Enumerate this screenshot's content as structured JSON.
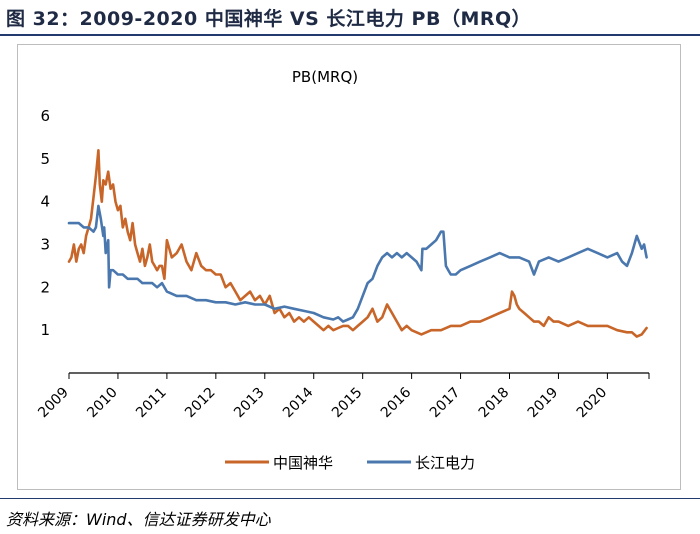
{
  "figure": {
    "title": "图 32：2009-2020 中国神华 VS 长江电力 PB（MRQ）",
    "source": "资料来源：Wind、信达证券研发中心"
  },
  "colors": {
    "title_rule": "#233a6e",
    "series_shenhua": "#c8662a",
    "series_changjiang": "#4a78ae",
    "axis": "#000000"
  },
  "chart_data": {
    "type": "line",
    "title": "PB(MRQ)",
    "xlabel": "",
    "ylabel": "",
    "xlim": [
      2009.0,
      2020.85
    ],
    "ylim": [
      0,
      6
    ],
    "yticks": [
      1,
      2,
      3,
      4,
      5,
      6
    ],
    "xticks": [
      "2009",
      "2010",
      "2011",
      "2012",
      "2013",
      "2014",
      "2015",
      "2016",
      "2017",
      "2018",
      "2019",
      "2020"
    ],
    "grid": false,
    "legend_position": "bottom",
    "series": [
      {
        "name": "中国神华",
        "color": "#c8662a",
        "x": [
          2009.0,
          2009.05,
          2009.1,
          2009.15,
          2009.2,
          2009.25,
          2009.3,
          2009.35,
          2009.4,
          2009.45,
          2009.5,
          2009.55,
          2009.6,
          2009.63,
          2009.67,
          2009.7,
          2009.75,
          2009.8,
          2009.85,
          2009.9,
          2009.95,
          2010.0,
          2010.05,
          2010.1,
          2010.15,
          2010.2,
          2010.25,
          2010.3,
          2010.35,
          2010.4,
          2010.45,
          2010.5,
          2010.55,
          2010.6,
          2010.65,
          2010.7,
          2010.75,
          2010.8,
          2010.85,
          2010.9,
          2010.95,
          2011.0,
          2011.1,
          2011.2,
          2011.3,
          2011.4,
          2011.5,
          2011.6,
          2011.7,
          2011.8,
          2011.9,
          2012.0,
          2012.1,
          2012.2,
          2012.3,
          2012.4,
          2012.5,
          2012.6,
          2012.7,
          2012.8,
          2012.9,
          2013.0,
          2013.1,
          2013.2,
          2013.3,
          2013.4,
          2013.5,
          2013.6,
          2013.7,
          2013.8,
          2013.9,
          2014.0,
          2014.1,
          2014.2,
          2014.3,
          2014.4,
          2014.5,
          2014.6,
          2014.7,
          2014.8,
          2014.9,
          2015.0,
          2015.1,
          2015.2,
          2015.3,
          2015.4,
          2015.5,
          2015.6,
          2015.7,
          2015.8,
          2015.9,
          2016.0,
          2016.2,
          2016.4,
          2016.6,
          2016.8,
          2017.0,
          2017.2,
          2017.4,
          2017.6,
          2017.8,
          2018.0,
          2018.05,
          2018.1,
          2018.15,
          2018.2,
          2018.3,
          2018.4,
          2018.5,
          2018.6,
          2018.7,
          2018.8,
          2018.9,
          2019.0,
          2019.2,
          2019.4,
          2019.6,
          2019.8,
          2020.0,
          2020.2,
          2020.4,
          2020.5,
          2020.6,
          2020.7,
          2020.8
        ],
        "values": [
          2.6,
          2.7,
          3.0,
          2.6,
          2.9,
          3.0,
          2.8,
          3.2,
          3.4,
          3.6,
          4.1,
          4.6,
          5.2,
          4.4,
          4.0,
          4.5,
          4.4,
          4.7,
          4.3,
          4.4,
          4.0,
          3.8,
          3.9,
          3.4,
          3.6,
          3.3,
          3.1,
          3.5,
          3.0,
          2.8,
          2.6,
          2.9,
          2.5,
          2.7,
          3.0,
          2.6,
          2.5,
          2.4,
          2.5,
          2.5,
          2.2,
          3.1,
          2.7,
          2.8,
          3.0,
          2.6,
          2.4,
          2.8,
          2.5,
          2.4,
          2.4,
          2.3,
          2.3,
          2.0,
          2.1,
          1.9,
          1.7,
          1.8,
          1.9,
          1.7,
          1.8,
          1.6,
          1.8,
          1.4,
          1.5,
          1.3,
          1.4,
          1.2,
          1.3,
          1.2,
          1.3,
          1.2,
          1.1,
          1.0,
          1.1,
          1.0,
          1.05,
          1.1,
          1.1,
          1.0,
          1.1,
          1.2,
          1.3,
          1.5,
          1.2,
          1.3,
          1.6,
          1.4,
          1.2,
          1.0,
          1.1,
          1.0,
          0.9,
          1.0,
          1.0,
          1.1,
          1.1,
          1.2,
          1.2,
          1.3,
          1.4,
          1.5,
          1.9,
          1.8,
          1.6,
          1.5,
          1.4,
          1.3,
          1.2,
          1.2,
          1.1,
          1.3,
          1.2,
          1.2,
          1.1,
          1.2,
          1.1,
          1.1,
          1.1,
          1.0,
          0.95,
          0.95,
          0.85,
          0.9,
          1.05
        ]
      },
      {
        "name": "长江电力",
        "color": "#4a78ae",
        "x": [
          2009.0,
          2009.1,
          2009.2,
          2009.3,
          2009.4,
          2009.5,
          2009.55,
          2009.6,
          2009.65,
          2009.7,
          2009.72,
          2009.75,
          2009.8,
          2009.82,
          2009.85,
          2009.9,
          2010.0,
          2010.1,
          2010.2,
          2010.3,
          2010.4,
          2010.5,
          2010.6,
          2010.7,
          2010.8,
          2010.9,
          2011.0,
          2011.2,
          2011.4,
          2011.6,
          2011.8,
          2012.0,
          2012.2,
          2012.4,
          2012.6,
          2012.8,
          2013.0,
          2013.2,
          2013.4,
          2013.6,
          2013.8,
          2014.0,
          2014.2,
          2014.4,
          2014.5,
          2014.6,
          2014.7,
          2014.8,
          2014.9,
          2015.0,
          2015.1,
          2015.2,
          2015.3,
          2015.4,
          2015.5,
          2015.6,
          2015.7,
          2015.8,
          2015.9,
          2016.0,
          2016.1,
          2016.2,
          2016.22,
          2016.3,
          2016.4,
          2016.5,
          2016.6,
          2016.65,
          2016.7,
          2016.75,
          2016.8,
          2016.9,
          2017.0,
          2017.2,
          2017.4,
          2017.6,
          2017.8,
          2018.0,
          2018.2,
          2018.4,
          2018.5,
          2018.6,
          2018.8,
          2019.0,
          2019.2,
          2019.4,
          2019.6,
          2019.8,
          2020.0,
          2020.2,
          2020.3,
          2020.4,
          2020.5,
          2020.6,
          2020.7,
          2020.75,
          2020.8
        ],
        "values": [
          3.5,
          3.5,
          3.5,
          3.4,
          3.4,
          3.3,
          3.4,
          3.9,
          3.6,
          3.2,
          3.4,
          2.8,
          3.1,
          2.0,
          2.4,
          2.4,
          2.3,
          2.3,
          2.2,
          2.2,
          2.2,
          2.1,
          2.1,
          2.1,
          2.0,
          2.1,
          1.9,
          1.8,
          1.8,
          1.7,
          1.7,
          1.65,
          1.65,
          1.6,
          1.65,
          1.6,
          1.6,
          1.5,
          1.55,
          1.5,
          1.45,
          1.4,
          1.3,
          1.25,
          1.3,
          1.2,
          1.25,
          1.3,
          1.5,
          1.8,
          2.1,
          2.2,
          2.5,
          2.7,
          2.8,
          2.7,
          2.8,
          2.7,
          2.8,
          2.7,
          2.6,
          2.4,
          2.9,
          2.9,
          3.0,
          3.1,
          3.3,
          3.3,
          2.5,
          2.4,
          2.3,
          2.3,
          2.4,
          2.5,
          2.6,
          2.7,
          2.8,
          2.7,
          2.7,
          2.6,
          2.3,
          2.6,
          2.7,
          2.6,
          2.7,
          2.8,
          2.9,
          2.8,
          2.7,
          2.8,
          2.6,
          2.5,
          2.8,
          3.2,
          2.9,
          3.0,
          2.7
        ]
      }
    ]
  }
}
